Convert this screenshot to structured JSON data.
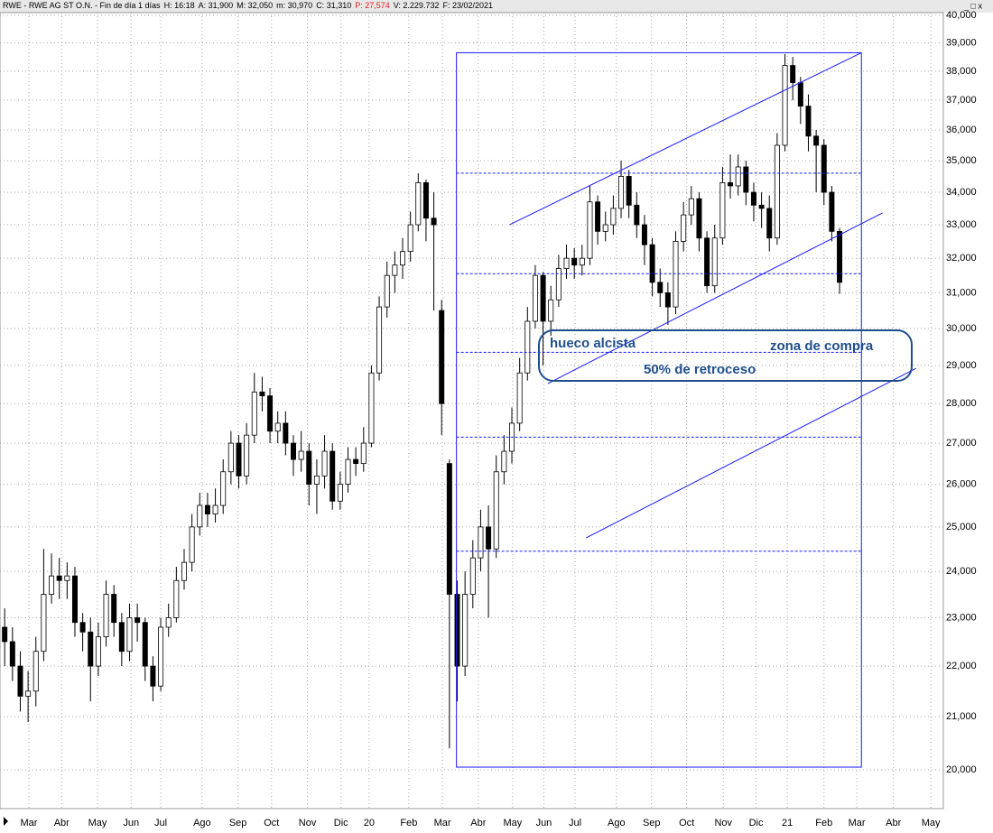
{
  "header": {
    "title": "RWE - RWE AG ST O.N. - Fin de día 1 días",
    "fields": [
      {
        "text": "H: 16:18",
        "color": "#000000"
      },
      {
        "text": "A: 31,900",
        "color": "#000000"
      },
      {
        "text": "M: 32,050",
        "color": "#000000"
      },
      {
        "text": "m: 30,970",
        "color": "#000000"
      },
      {
        "text": "C: 31,310",
        "color": "#000000"
      },
      {
        "text": "P: 27,574",
        "color": "#e02020"
      },
      {
        "text": "V: 2.229.732",
        "color": "#000000"
      },
      {
        "text": "F: 23/02/2021",
        "color": "#000000"
      }
    ]
  },
  "chart_data": {
    "type": "candlestick",
    "log_scale": true,
    "grid": true,
    "up_color": "#ffffff",
    "down_color": "#000000",
    "line_color": "#000000",
    "x": [
      0,
      1,
      2,
      3,
      4,
      5,
      6,
      7,
      8,
      9,
      10,
      11,
      12,
      13,
      14,
      15,
      16,
      17,
      18,
      19,
      20,
      21,
      22,
      23,
      24,
      25,
      26,
      27,
      28,
      29,
      30,
      31,
      32,
      33,
      34,
      35,
      36,
      37,
      38,
      39,
      40,
      41,
      42,
      43,
      44,
      45,
      46,
      47,
      48,
      49,
      50,
      51,
      52,
      53,
      54,
      55,
      56,
      57,
      58,
      59,
      60,
      61,
      62,
      63,
      64,
      65,
      66,
      67,
      68,
      69,
      70,
      71,
      72,
      73,
      74,
      75,
      76,
      77,
      78,
      79,
      80,
      81,
      82,
      83,
      84,
      85,
      86,
      87,
      88,
      89,
      90,
      91,
      92,
      93,
      94,
      95,
      96,
      97,
      98,
      99,
      100,
      101,
      102,
      103,
      104,
      105,
      106,
      107
    ],
    "open": [
      22800,
      22500,
      22000,
      21400,
      21500,
      22300,
      23500,
      23900,
      23800,
      23900,
      22900,
      22700,
      22000,
      22600,
      23500,
      22900,
      22300,
      23000,
      22900,
      22000,
      21600,
      22800,
      23000,
      23800,
      24200,
      25000,
      25500,
      25300,
      25500,
      26300,
      27000,
      26200,
      27200,
      28300,
      28200,
      27300,
      27500,
      27000,
      26600,
      26800,
      26000,
      26200,
      26800,
      25600,
      26000,
      26600,
      26500,
      27000,
      28800,
      30600,
      31500,
      31800,
      32200,
      33000,
      34300,
      33200,
      30500,
      26500,
      23500,
      22000,
      23500,
      24300,
      25000,
      24500,
      26300,
      26800,
      27500,
      28800,
      30200,
      31500,
      30200,
      30800,
      31700,
      32000,
      31800,
      32000,
      33700,
      32800,
      33000,
      33500,
      34500,
      33600,
      33000,
      32400,
      31300,
      31000,
      30600,
      32500,
      33300,
      33800,
      32600,
      31200,
      32600,
      34300,
      34200,
      34800,
      34000,
      33600,
      33500,
      32600,
      35500,
      38200,
      37600,
      36800,
      35800,
      35500,
      34000,
      32800
    ],
    "high": [
      23200,
      22800,
      22300,
      21900,
      22600,
      24500,
      24400,
      24300,
      24200,
      24100,
      23100,
      23000,
      22900,
      23800,
      23700,
      23100,
      23300,
      23300,
      23000,
      22200,
      23000,
      23300,
      24100,
      24500,
      25300,
      25800,
      25800,
      25900,
      26600,
      27300,
      27200,
      27500,
      28800,
      28700,
      28400,
      27800,
      27800,
      27200,
      27300,
      27000,
      26600,
      27200,
      27000,
      26300,
      26900,
      26900,
      27400,
      29000,
      30900,
      31900,
      32200,
      32600,
      33400,
      34600,
      34400,
      34000,
      30800,
      26600,
      23800,
      24000,
      24700,
      25400,
      25500,
      26700,
      27200,
      27900,
      29200,
      30600,
      31800,
      31600,
      31200,
      32100,
      32400,
      32300,
      32400,
      34200,
      33900,
      33400,
      33900,
      35000,
      34700,
      34000,
      33300,
      32600,
      31700,
      31300,
      32800,
      33700,
      34200,
      34000,
      32800,
      33000,
      34800,
      35200,
      35200,
      35000,
      34300,
      34000,
      33900,
      35900,
      38600,
      38500,
      37800,
      37200,
      36000,
      35700,
      34200,
      32900
    ],
    "low": [
      22000,
      21700,
      21100,
      20900,
      21200,
      22100,
      23300,
      23400,
      23400,
      22600,
      22300,
      21300,
      21800,
      22400,
      22600,
      22000,
      22100,
      22500,
      21700,
      21300,
      21500,
      22600,
      22900,
      23600,
      24000,
      24800,
      25000,
      25100,
      25300,
      26000,
      25900,
      26000,
      27000,
      27800,
      27000,
      27000,
      26700,
      26200,
      26300,
      25500,
      25300,
      25900,
      25400,
      25400,
      25800,
      26200,
      26300,
      26900,
      28600,
      30300,
      31000,
      31400,
      31900,
      32800,
      32500,
      30500,
      27200,
      20400,
      21300,
      21800,
      23200,
      24000,
      23000,
      24300,
      26000,
      26500,
      27300,
      28600,
      30000,
      29000,
      29800,
      30600,
      31400,
      31400,
      31500,
      31800,
      32400,
      32500,
      32700,
      33200,
      33200,
      32600,
      31800,
      30900,
      30600,
      30100,
      30400,
      32200,
      33000,
      32200,
      31000,
      31000,
      32400,
      33800,
      33900,
      33600,
      33100,
      32900,
      32200,
      32400,
      35300,
      37000,
      36200,
      35300,
      34000,
      33600,
      32500,
      30970
    ],
    "close": [
      22500,
      22000,
      21400,
      21500,
      22300,
      23500,
      23900,
      23800,
      23900,
      22900,
      22700,
      22000,
      22600,
      23500,
      22900,
      22300,
      23000,
      22900,
      22000,
      21600,
      22800,
      23000,
      23800,
      24200,
      25000,
      25500,
      25300,
      25500,
      26300,
      27000,
      26200,
      27200,
      28300,
      28200,
      27300,
      27500,
      27000,
      26600,
      26800,
      26000,
      26200,
      26800,
      25600,
      26000,
      26600,
      26500,
      27000,
      28800,
      30600,
      31500,
      31800,
      32200,
      33000,
      34300,
      33200,
      33000,
      28000,
      23500,
      22000,
      23500,
      24300,
      25000,
      24500,
      26300,
      26800,
      27500,
      28800,
      30200,
      31500,
      30200,
      30800,
      31700,
      32000,
      31800,
      32000,
      33700,
      32800,
      33000,
      33500,
      34500,
      33600,
      33000,
      32400,
      31300,
      31000,
      30600,
      32500,
      33300,
      33800,
      32600,
      31200,
      32600,
      34300,
      34200,
      34800,
      34000,
      33600,
      33500,
      32600,
      35500,
      38200,
      37600,
      36800,
      35800,
      35500,
      34000,
      32800,
      31300
    ],
    "xlim": [
      -0.6,
      120.3
    ],
    "xticks": [
      {
        "value": 3.1,
        "label": "Mar"
      },
      {
        "value": 7.3,
        "label": "Abr"
      },
      {
        "value": 11.9,
        "label": "May"
      },
      {
        "value": 16.2,
        "label": "Jun"
      },
      {
        "value": 20,
        "label": "Jul"
      },
      {
        "value": 25.3,
        "label": "Ago"
      },
      {
        "value": 29.9,
        "label": "Sep"
      },
      {
        "value": 34.2,
        "label": "Oct"
      },
      {
        "value": 38.8,
        "label": "Nov"
      },
      {
        "value": 43.1,
        "label": "Dic"
      },
      {
        "value": 46.7,
        "label": "20"
      },
      {
        "value": 51.8,
        "label": "Feb"
      },
      {
        "value": 56.1,
        "label": "Mar"
      },
      {
        "value": 60.7,
        "label": "Abr"
      },
      {
        "value": 65.1,
        "label": "May"
      },
      {
        "value": 69.1,
        "label": "Jun"
      },
      {
        "value": 73.1,
        "label": "Jul"
      },
      {
        "value": 78.4,
        "label": "Ago"
      },
      {
        "value": 82.9,
        "label": "Sep"
      },
      {
        "value": 87.4,
        "label": "Oct"
      },
      {
        "value": 92.1,
        "label": "Nov"
      },
      {
        "value": 96.3,
        "label": "Dic"
      },
      {
        "value": 100.3,
        "label": "21"
      },
      {
        "value": 105,
        "label": "Feb"
      },
      {
        "value": 109.2,
        "label": "Mar"
      },
      {
        "value": 113.9,
        "label": "Abr"
      },
      {
        "value": 118.7,
        "label": "May"
      }
    ],
    "ylim": [
      19300,
      40100
    ],
    "yticks": [
      {
        "value": 20000,
        "label": "20,000"
      },
      {
        "value": 21000,
        "label": "21,000"
      },
      {
        "value": 22000,
        "label": "22,000"
      },
      {
        "value": 23000,
        "label": "23,000"
      },
      {
        "value": 24000,
        "label": "24,000"
      },
      {
        "value": 25000,
        "label": "25,000"
      },
      {
        "value": 26000,
        "label": "26,000"
      },
      {
        "value": 27000,
        "label": "27,000"
      },
      {
        "value": 28000,
        "label": "28,000"
      },
      {
        "value": 29000,
        "label": "29,000"
      },
      {
        "value": 30000,
        "label": "30,000"
      },
      {
        "value": 31000,
        "label": "31,000"
      },
      {
        "value": 32000,
        "label": "32,000"
      },
      {
        "value": 33000,
        "label": "33,000"
      },
      {
        "value": 34000,
        "label": "34,000"
      },
      {
        "value": 35000,
        "label": "35,000"
      },
      {
        "value": 36000,
        "label": "36,000"
      },
      {
        "value": 37000,
        "label": "37,000"
      },
      {
        "value": 38000,
        "label": "38,000"
      },
      {
        "value": 39000,
        "label": "39,000"
      },
      {
        "value": 40000,
        "label": "40,000"
      }
    ],
    "annotations": {
      "color": "#1a1aff",
      "box": {
        "x": [
          57.9,
          109.8
        ],
        "y": [
          20050,
          38650
        ]
      },
      "levels": [
        34600,
        31550,
        29350,
        27150,
        24450
      ],
      "trend_lines": [
        {
          "x": [
            64.7,
            109.8
          ],
          "y": [
            33000,
            38650
          ]
        },
        {
          "x": [
            69.6,
            112.5
          ],
          "y": [
            28520,
            33360
          ]
        },
        {
          "x": [
            74.5,
            116.8
          ],
          "y": [
            24750,
            28920
          ]
        }
      ],
      "texts": [
        "hueco alcista",
        "zona de compra",
        "50% de retroceso"
      ]
    }
  }
}
